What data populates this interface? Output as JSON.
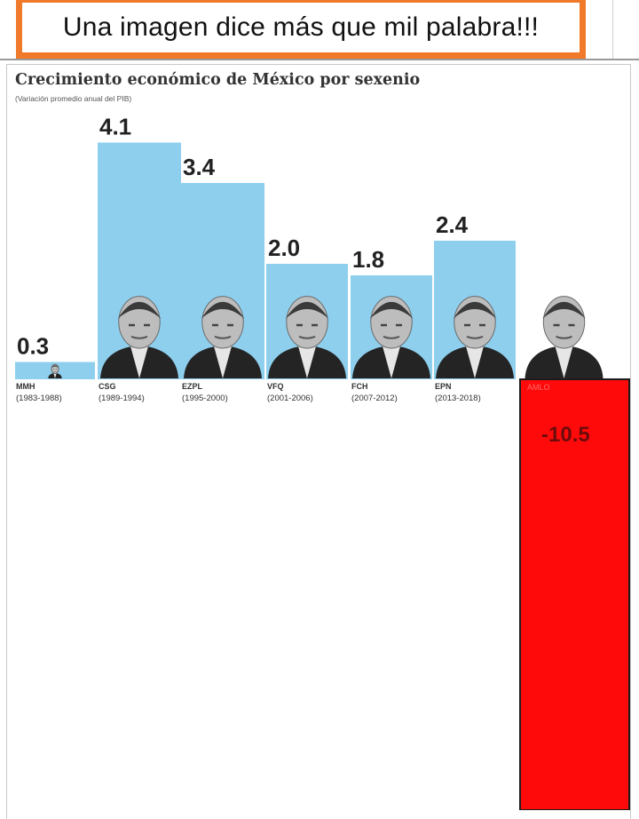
{
  "banner": {
    "text": "Una imagen dice más que mil palabra!!!"
  },
  "chart_data": {
    "type": "bar",
    "title": "Crecimiento económico de México por sexenio",
    "subtitle": "(Variación promedio anual del PIB)",
    "xlabel": "",
    "ylabel": "",
    "ylim": [
      -10.5,
      4.1
    ],
    "grid": false,
    "categories": [
      "MMH",
      "CSG",
      "EZPL",
      "VFQ",
      "FCH",
      "EPN",
      "AMLO"
    ],
    "periods": [
      "(1983-1988)",
      "(1989-1994)",
      "(1995-2000)",
      "(2001-2006)",
      "(2007-2012)",
      "(2013-2018)",
      ""
    ],
    "values": [
      0.3,
      4.1,
      3.4,
      2.0,
      1.8,
      2.4,
      -10.5
    ],
    "value_labels": [
      "0.3",
      "4.1",
      "3.4",
      "2.0",
      "1.8",
      "2.4",
      "-10.5"
    ],
    "colors": {
      "positive": "#8ecfee",
      "negative": "#ff0a0a",
      "negative_border": "#1c1c1c"
    }
  }
}
